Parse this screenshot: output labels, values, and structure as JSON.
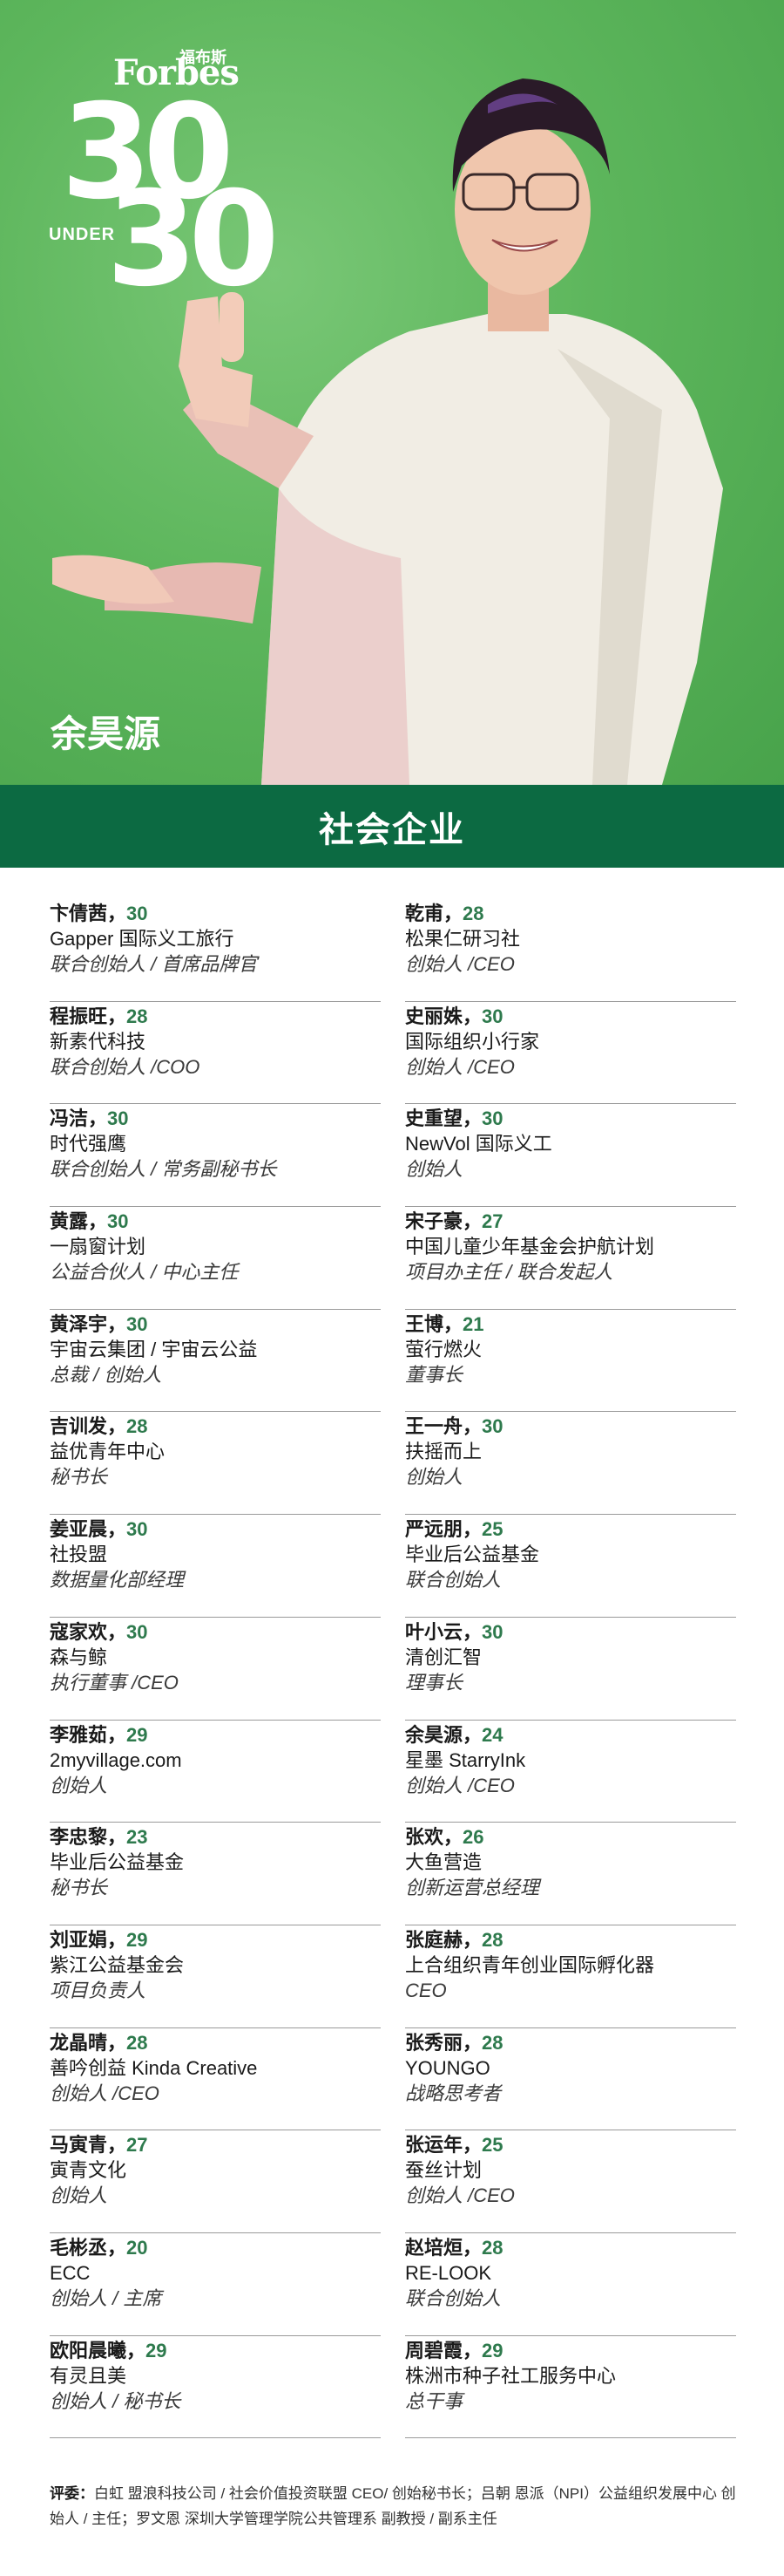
{
  "logo": {
    "brand": "Forbes",
    "brand_cn": "福布斯",
    "num_top": "30",
    "under": "UNDER",
    "num_bottom": "30"
  },
  "hero": {
    "name": "余昊源"
  },
  "banner": {
    "title": "社会企业"
  },
  "colors": {
    "banner": "#0c6a42",
    "age": "#2e7a4d",
    "hero_bg": "#5db65c"
  },
  "left_column": [
    {
      "name": "卞倩茜，",
      "age": "30",
      "org": "Gapper 国际义工旅行",
      "role": "联合创始人 / 首席品牌官"
    },
    {
      "name": "程振旺，",
      "age": "28",
      "org": "新素代科技",
      "role": "联合创始人 /COO"
    },
    {
      "name": "冯洁，",
      "age": "30",
      "org": "时代强鹰",
      "role": "联合创始人 / 常务副秘书长"
    },
    {
      "name": "黄露，",
      "age": "30",
      "org": "一扇窗计划",
      "role": "公益合伙人 / 中心主任"
    },
    {
      "name": "黄泽宇，",
      "age": "30",
      "org": "宇宙云集团 / 宇宙云公益",
      "role": "总裁 / 创始人"
    },
    {
      "name": "吉训发，",
      "age": "28",
      "org": "益优青年中心",
      "role": "秘书长"
    },
    {
      "name": "姜亚晨，",
      "age": "30",
      "org": "社投盟",
      "role": "数据量化部经理"
    },
    {
      "name": "寇家欢，",
      "age": "30",
      "org": "森与鲸",
      "role": "执行董事 /CEO"
    },
    {
      "name": "李雅茹，",
      "age": "29",
      "org": "2myvillage.com",
      "role": "创始人"
    },
    {
      "name": "李忠黎，",
      "age": "23",
      "org": "毕业后公益基金",
      "role": "秘书长"
    },
    {
      "name": "刘亚娟，",
      "age": "29",
      "org": "紫江公益基金会",
      "role": "项目负责人"
    },
    {
      "name": "龙晶晴，",
      "age": "28",
      "org": "善吟创益 Kinda Creative",
      "role": "创始人 /CEO"
    },
    {
      "name": "马寅青，",
      "age": "27",
      "org": "寅青文化",
      "role": "创始人"
    },
    {
      "name": "毛彬丞，",
      "age": "20",
      "org": "ECC",
      "role": "创始人 / 主席"
    },
    {
      "name": "欧阳晨曦，",
      "age": "29",
      "org": "有灵且美",
      "role": "创始人 / 秘书长"
    }
  ],
  "right_column": [
    {
      "name": "乾甫，",
      "age": "28",
      "org": "松果仁研习社",
      "role": "创始人 /CEO"
    },
    {
      "name": "史丽姝，",
      "age": "30",
      "org": "国际组织小行家",
      "role": "创始人 /CEO"
    },
    {
      "name": "史重望，",
      "age": "30",
      "org": "NewVol 国际义工",
      "role": "创始人"
    },
    {
      "name": "宋子豪，",
      "age": "27",
      "org": "中国儿童少年基金会护航计划",
      "role": "项目办主任 / 联合发起人"
    },
    {
      "name": "王博，",
      "age": "21",
      "org": "萤行燃火",
      "role": "董事长"
    },
    {
      "name": "王一舟，",
      "age": "30",
      "org": "扶摇而上",
      "role": "创始人"
    },
    {
      "name": "严远朋，",
      "age": "25",
      "org": "毕业后公益基金",
      "role": "联合创始人"
    },
    {
      "name": "叶小云，",
      "age": "30",
      "org": "清创汇智",
      "role": "理事长"
    },
    {
      "name": "余昊源，",
      "age": "24",
      "org": "星墨 StarryInk",
      "role": "创始人 /CEO"
    },
    {
      "name": "张欢，",
      "age": "26",
      "org": "大鱼营造",
      "role": "创新运营总经理"
    },
    {
      "name": "张庭赫，",
      "age": "28",
      "org": "上合组织青年创业国际孵化器",
      "role": "CEO"
    },
    {
      "name": "张秀丽，",
      "age": "28",
      "org": "YOUNGO",
      "role": "战略思考者"
    },
    {
      "name": "张运年，",
      "age": "25",
      "org": "蚕丝计划",
      "role": "创始人 /CEO"
    },
    {
      "name": "赵培烜，",
      "age": "28",
      "org": "RE-LOOK",
      "role": "联合创始人"
    },
    {
      "name": "周碧霞，",
      "age": "29",
      "org": "株洲市种子社工服务中心",
      "role": "总干事"
    }
  ],
  "footer": {
    "label": "评委：",
    "text": "白虹 盟浪科技公司 / 社会价值投资联盟 CEO/ 创始秘书长；吕朝 恩派（NPI）公益组织发展中心 创始人 / 主任；罗文恩 深圳大学管理学院公共管理系 副教授 / 副系主任"
  }
}
